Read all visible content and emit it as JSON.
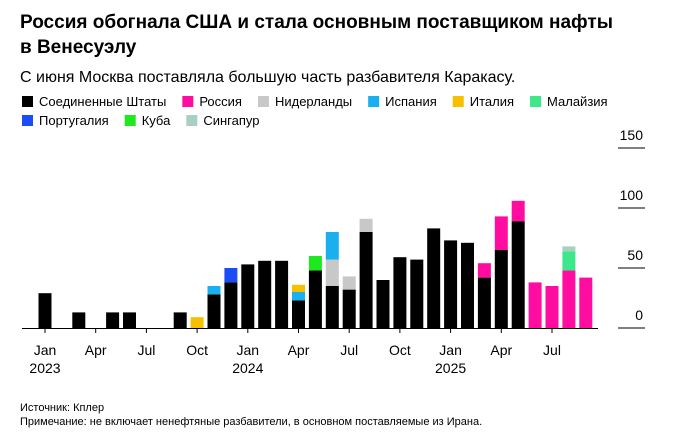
{
  "chart_data": {
    "type": "stacked_bar",
    "title": "Россия обогнала США и стала основным поставщиком нафты в Венесуэлу",
    "subtitle": "С июня Москва поставляла большую часть разбавителя Каракасу.",
    "source": "Источник: Кплер",
    "note": "Примечание: не включает ненефтяные разбавители, в основном поставляемые из Ирана.",
    "categories": [
      "Jan",
      null,
      null,
      "Apr",
      null,
      null,
      "Jul",
      null,
      null,
      "Oct",
      null,
      null,
      "Jan",
      null,
      null,
      "Apr",
      null,
      null,
      "Jul",
      null,
      null,
      "Oct",
      null,
      null,
      "Jan",
      null,
      null,
      "Apr",
      null,
      null,
      "Jul",
      null,
      null
    ],
    "category_years": [
      "2023",
      null,
      null,
      null,
      null,
      null,
      null,
      null,
      null,
      null,
      null,
      null,
      "2024",
      null,
      null,
      null,
      null,
      null,
      null,
      null,
      null,
      null,
      null,
      null,
      "2025",
      null,
      null,
      null,
      null,
      null,
      null,
      null,
      null
    ],
    "ylim": [
      0,
      150
    ],
    "yticks": [
      0,
      50,
      100,
      150
    ],
    "series": [
      {
        "name": "Соединенные Штаты",
        "color": "#000000",
        "values": [
          29,
          null,
          13,
          null,
          13,
          13,
          null,
          null,
          13,
          null,
          28,
          38,
          53,
          56,
          56,
          23,
          48,
          35,
          32,
          80,
          40,
          59,
          57,
          83,
          73,
          71,
          42,
          65,
          89,
          null,
          null,
          null,
          null
        ]
      },
      {
        "name": "Россия",
        "color": "#ff0da0",
        "values": [
          null,
          null,
          null,
          null,
          null,
          null,
          null,
          null,
          null,
          null,
          null,
          null,
          null,
          null,
          null,
          null,
          null,
          null,
          null,
          null,
          null,
          null,
          null,
          null,
          null,
          null,
          12,
          28,
          17,
          38,
          35,
          48,
          42
        ]
      },
      {
        "name": "Нидерланды",
        "color": "#c8c8c8",
        "values": [
          null,
          null,
          null,
          null,
          null,
          null,
          null,
          null,
          null,
          null,
          null,
          null,
          null,
          null,
          null,
          null,
          null,
          22,
          11,
          11,
          null,
          null,
          null,
          null,
          null,
          null,
          null,
          null,
          null,
          null,
          null,
          null,
          null
        ]
      },
      {
        "name": "Испания",
        "color": "#1ab0f0",
        "values": [
          null,
          null,
          null,
          null,
          null,
          null,
          null,
          null,
          null,
          null,
          7,
          null,
          null,
          null,
          null,
          7,
          null,
          23,
          null,
          null,
          null,
          null,
          null,
          null,
          null,
          null,
          null,
          null,
          null,
          null,
          null,
          null,
          null
        ]
      },
      {
        "name": "Италия",
        "color": "#f5c000",
        "values": [
          null,
          null,
          null,
          null,
          null,
          null,
          null,
          null,
          null,
          9,
          null,
          null,
          null,
          null,
          null,
          6,
          null,
          null,
          null,
          null,
          null,
          null,
          null,
          null,
          null,
          null,
          null,
          null,
          null,
          null,
          null,
          null,
          null
        ]
      },
      {
        "name": "Малайзия",
        "color": "#3ee88a",
        "values": [
          null,
          null,
          null,
          null,
          null,
          null,
          null,
          null,
          null,
          null,
          null,
          null,
          null,
          null,
          null,
          null,
          null,
          null,
          null,
          null,
          null,
          null,
          null,
          null,
          null,
          null,
          null,
          null,
          null,
          null,
          null,
          16,
          null
        ]
      },
      {
        "name": "Португалия",
        "color": "#1b4cf5",
        "values": [
          null,
          null,
          null,
          null,
          null,
          null,
          null,
          null,
          null,
          null,
          null,
          12,
          null,
          null,
          null,
          null,
          null,
          null,
          null,
          null,
          null,
          null,
          null,
          null,
          null,
          null,
          null,
          null,
          null,
          null,
          null,
          null,
          null
        ]
      },
      {
        "name": "Куба",
        "color": "#1ee81e",
        "values": [
          null,
          null,
          null,
          null,
          null,
          null,
          null,
          null,
          null,
          null,
          null,
          null,
          null,
          null,
          null,
          null,
          12,
          null,
          null,
          null,
          null,
          null,
          null,
          null,
          null,
          null,
          null,
          null,
          null,
          null,
          null,
          null,
          null
        ]
      },
      {
        "name": "Сингапур",
        "color": "#a8cfc0",
        "values": [
          null,
          null,
          null,
          null,
          null,
          null,
          null,
          null,
          null,
          null,
          null,
          null,
          null,
          null,
          null,
          null,
          null,
          null,
          null,
          null,
          null,
          null,
          null,
          null,
          null,
          null,
          null,
          null,
          null,
          null,
          null,
          4,
          null
        ]
      }
    ]
  }
}
